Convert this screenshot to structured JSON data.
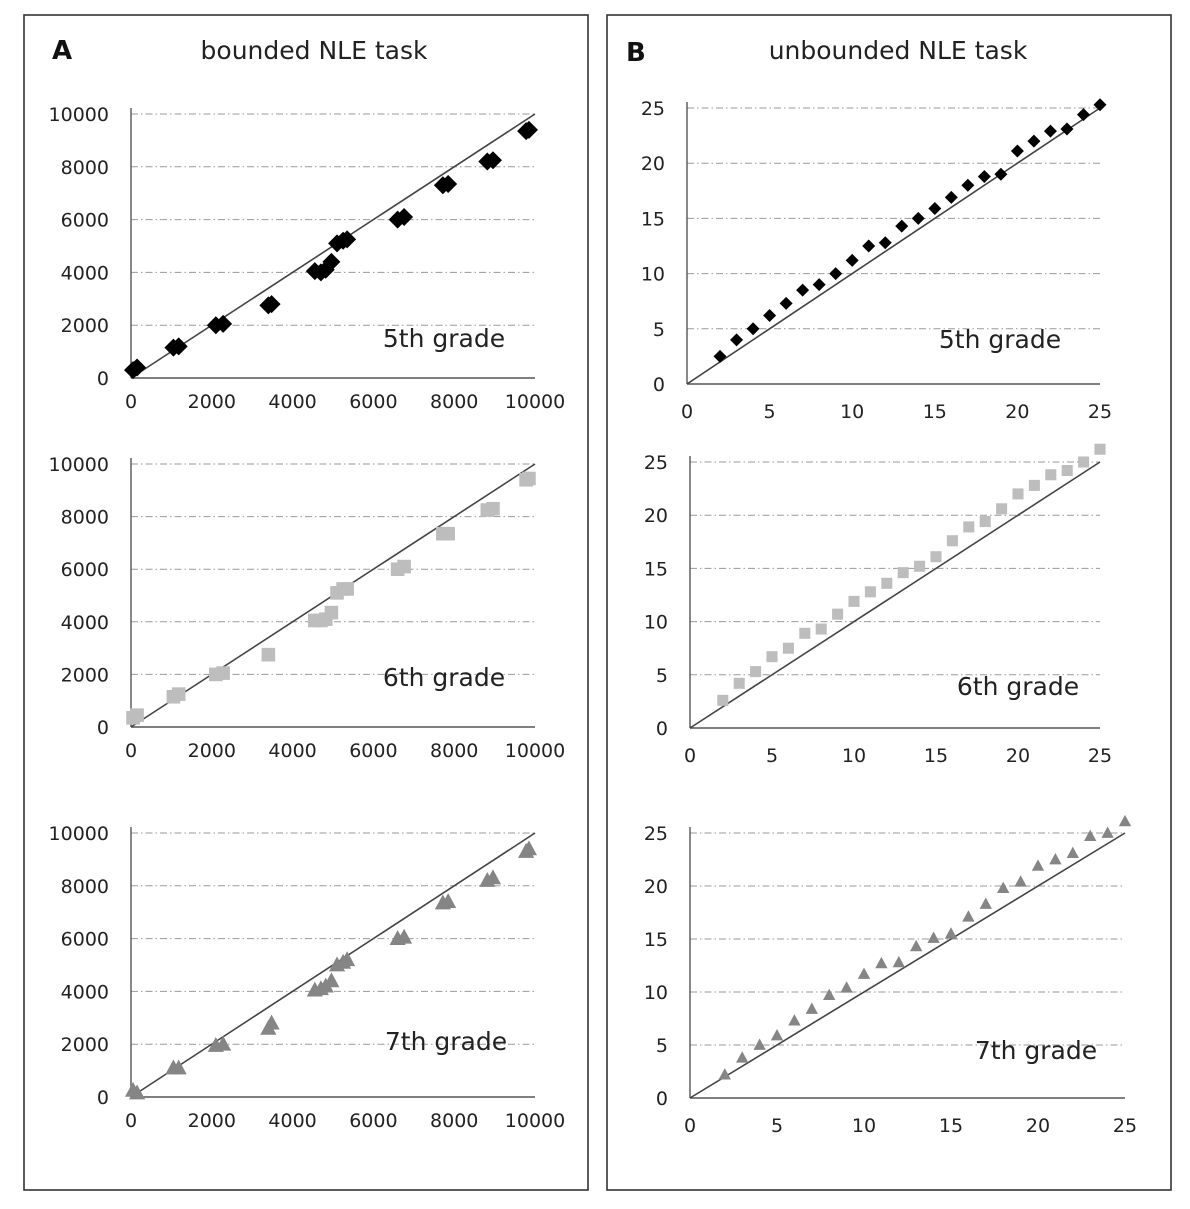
{
  "panels": [
    {
      "letter": "A",
      "title": "bounded NLE task"
    },
    {
      "letter": "B",
      "title": "unbounded NLE task"
    }
  ],
  "colors": {
    "grade5": "#000000",
    "grade6": "#bdbdbd",
    "grade7": "#858585",
    "line": "#444444",
    "frame": "#333333"
  },
  "chart_data": [
    {
      "type": "scatter",
      "panel": "A",
      "label": "5th grade",
      "marker": "diamond",
      "color": "#000000",
      "xlim": [
        0,
        10000
      ],
      "ylim": [
        0,
        10000
      ],
      "xticks": [
        "0",
        "2000",
        "4000",
        "6000",
        "8000",
        "10000"
      ],
      "yticks": [
        "0",
        "2000",
        "4000",
        "6000",
        "8000",
        "10000"
      ],
      "reference_line": [
        [
          0,
          0
        ],
        [
          10000,
          10000
        ]
      ],
      "x": [
        50,
        150,
        1050,
        1180,
        2100,
        2280,
        3400,
        3480,
        4550,
        4700,
        4820,
        4960,
        5100,
        5250,
        5350,
        6600,
        6760,
        7720,
        7850,
        8820,
        8960,
        9780,
        9850
      ],
      "y": [
        300,
        400,
        1150,
        1200,
        2000,
        2050,
        2750,
        2800,
        4050,
        4000,
        4100,
        4400,
        5100,
        5200,
        5250,
        6000,
        6100,
        7300,
        7350,
        8200,
        8250,
        9350,
        9400
      ]
    },
    {
      "type": "scatter",
      "panel": "A",
      "label": "6th grade",
      "marker": "square",
      "color": "#bdbdbd",
      "xlim": [
        0,
        10000
      ],
      "ylim": [
        0,
        10000
      ],
      "xticks": [
        "0",
        "2000",
        "4000",
        "6000",
        "8000",
        "10000"
      ],
      "yticks": [
        "0",
        "2000",
        "4000",
        "6000",
        "8000",
        "10000"
      ],
      "reference_line": [
        [
          0,
          0
        ],
        [
          10000,
          10000
        ]
      ],
      "x": [
        50,
        150,
        1050,
        1180,
        2100,
        2280,
        3400,
        4550,
        4700,
        4820,
        4960,
        5100,
        5250,
        5350,
        6600,
        6760,
        7720,
        7850,
        8820,
        8960,
        9780,
        9850
      ],
      "y": [
        350,
        450,
        1150,
        1250,
        2000,
        2050,
        2750,
        4050,
        4050,
        4100,
        4350,
        5100,
        5250,
        5250,
        6000,
        6100,
        7350,
        7350,
        8250,
        8300,
        9400,
        9450
      ]
    },
    {
      "type": "scatter",
      "panel": "A",
      "label": "7th grade",
      "marker": "triangle",
      "color": "#858585",
      "xlim": [
        0,
        10000
      ],
      "ylim": [
        0,
        10000
      ],
      "xticks": [
        "0",
        "2000",
        "4000",
        "6000",
        "8000",
        "10000"
      ],
      "yticks": [
        "0",
        "2000",
        "4000",
        "6000",
        "8000",
        "10000"
      ],
      "reference_line": [
        [
          0,
          0
        ],
        [
          10000,
          10000
        ]
      ],
      "x": [
        50,
        150,
        1050,
        1180,
        2100,
        2280,
        3400,
        3480,
        4550,
        4700,
        4820,
        4960,
        5100,
        5250,
        5350,
        6600,
        6760,
        7720,
        7850,
        8820,
        8960,
        9780,
        9850
      ],
      "y": [
        250,
        150,
        1100,
        1100,
        1950,
        2000,
        2600,
        2800,
        4050,
        4100,
        4200,
        4400,
        5000,
        5100,
        5200,
        6000,
        6050,
        7350,
        7400,
        8200,
        8300,
        9300,
        9400
      ]
    },
    {
      "type": "scatter",
      "panel": "B",
      "label": "5th grade",
      "marker": "diamond",
      "color": "#000000",
      "xlim": [
        0,
        25
      ],
      "ylim": [
        0,
        25
      ],
      "xticks": [
        "0",
        "5",
        "10",
        "15",
        "20",
        "25"
      ],
      "yticks": [
        "0",
        "5",
        "10",
        "15",
        "20",
        "25"
      ],
      "reference_line": [
        [
          0,
          0
        ],
        [
          25,
          25
        ]
      ],
      "x": [
        2,
        3,
        4,
        5,
        6,
        7,
        8,
        9,
        10,
        11,
        12,
        13,
        14,
        15,
        16,
        17,
        18,
        19,
        20,
        21,
        22,
        23,
        24,
        25
      ],
      "y": [
        2.5,
        4.0,
        5.0,
        6.2,
        7.3,
        8.5,
        9.0,
        10.0,
        11.2,
        12.5,
        12.8,
        14.3,
        15.0,
        15.9,
        16.9,
        18.0,
        18.8,
        19.0,
        21.1,
        22.0,
        22.9,
        23.1,
        24.4,
        25.3
      ]
    },
    {
      "type": "scatter",
      "panel": "B",
      "label": "6th grade",
      "marker": "square",
      "color": "#bdbdbd",
      "xlim": [
        0,
        25
      ],
      "ylim": [
        0,
        25
      ],
      "xticks": [
        "0",
        "5",
        "10",
        "15",
        "20",
        "25"
      ],
      "yticks": [
        "0",
        "5",
        "10",
        "15",
        "20",
        "25"
      ],
      "reference_line": [
        [
          0,
          0
        ],
        [
          25,
          25
        ]
      ],
      "x": [
        2,
        3,
        4,
        5,
        6,
        7,
        8,
        9,
        10,
        11,
        12,
        13,
        14,
        15,
        16,
        17,
        18,
        19,
        20,
        21,
        22,
        23,
        24,
        25
      ],
      "y": [
        2.6,
        4.2,
        5.3,
        6.7,
        7.5,
        8.9,
        9.3,
        10.7,
        11.9,
        12.8,
        13.6,
        14.6,
        15.2,
        16.1,
        17.6,
        18.9,
        19.4,
        20.6,
        22.0,
        22.8,
        23.8,
        24.2,
        25.0,
        26.2
      ]
    },
    {
      "type": "scatter",
      "panel": "B",
      "label": "7th grade",
      "marker": "triangle",
      "color": "#858585",
      "xlim": [
        0,
        25
      ],
      "ylim": [
        0,
        25
      ],
      "xticks": [
        "0",
        "5",
        "10",
        "15",
        "20",
        "25"
      ],
      "yticks": [
        "0",
        "5",
        "10",
        "15",
        "20",
        "25"
      ],
      "reference_line": [
        [
          0,
          0
        ],
        [
          25,
          25
        ]
      ],
      "x": [
        2,
        3,
        4,
        5,
        6,
        7,
        8,
        9,
        10,
        11,
        12,
        13,
        14,
        15,
        16,
        17,
        18,
        19,
        20,
        21,
        22,
        23,
        24,
        25
      ],
      "y": [
        2.2,
        3.8,
        5.0,
        5.9,
        7.3,
        8.4,
        9.7,
        10.4,
        11.7,
        12.7,
        12.8,
        14.3,
        15.1,
        15.5,
        17.1,
        18.3,
        19.8,
        20.4,
        21.9,
        22.5,
        23.1,
        24.7,
        25.0,
        26.1
      ]
    }
  ]
}
